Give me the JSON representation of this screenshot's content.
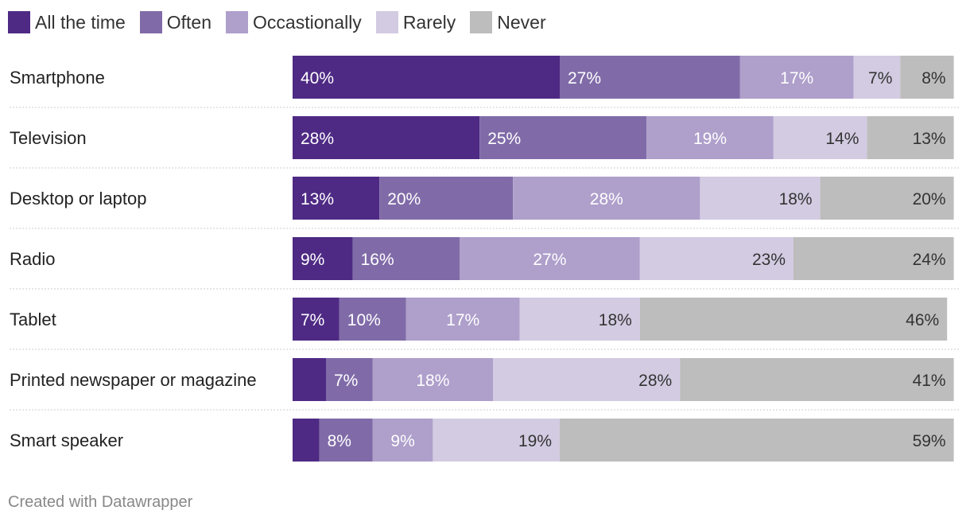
{
  "chart_data": {
    "type": "bar",
    "orientation": "horizontal",
    "stacked": true,
    "categories": [
      "Smartphone",
      "Television",
      "Desktop or laptop",
      "Radio",
      "Tablet",
      "Printed newspaper or magazine",
      "Smart speaker"
    ],
    "series": [
      {
        "name": "All the time",
        "color": "#4e2a84",
        "values": [
          40,
          28,
          13,
          9,
          7,
          5,
          4
        ],
        "labels": [
          "40%",
          "28%",
          "13%",
          "9%",
          "7%",
          "",
          ""
        ]
      },
      {
        "name": "Often",
        "color": "#806ba8",
        "values": [
          27,
          25,
          20,
          16,
          10,
          7,
          8
        ],
        "labels": [
          "27%",
          "25%",
          "20%",
          "16%",
          "10%",
          "7%",
          "8%"
        ]
      },
      {
        "name": "Occastionally",
        "color": "#ae9fcb",
        "values": [
          17,
          19,
          28,
          27,
          17,
          18,
          9
        ],
        "labels": [
          "17%",
          "19%",
          "28%",
          "27%",
          "17%",
          "18%",
          "9%"
        ]
      },
      {
        "name": "Rarely",
        "color": "#d3cbe2",
        "values": [
          7,
          14,
          18,
          23,
          18,
          28,
          19
        ],
        "labels": [
          "7%",
          "14%",
          "18%",
          "23%",
          "18%",
          "28%",
          "19%"
        ]
      },
      {
        "name": "Never",
        "color": "#bdbdbd",
        "values": [
          8,
          13,
          20,
          24,
          46,
          41,
          59
        ],
        "labels": [
          "8%",
          "13%",
          "20%",
          "24%",
          "46%",
          "41%",
          "59%"
        ]
      }
    ],
    "xlim": [
      0,
      100
    ],
    "legend_position": "top-left",
    "grid": false
  },
  "credit": "Created with Datawrapper"
}
